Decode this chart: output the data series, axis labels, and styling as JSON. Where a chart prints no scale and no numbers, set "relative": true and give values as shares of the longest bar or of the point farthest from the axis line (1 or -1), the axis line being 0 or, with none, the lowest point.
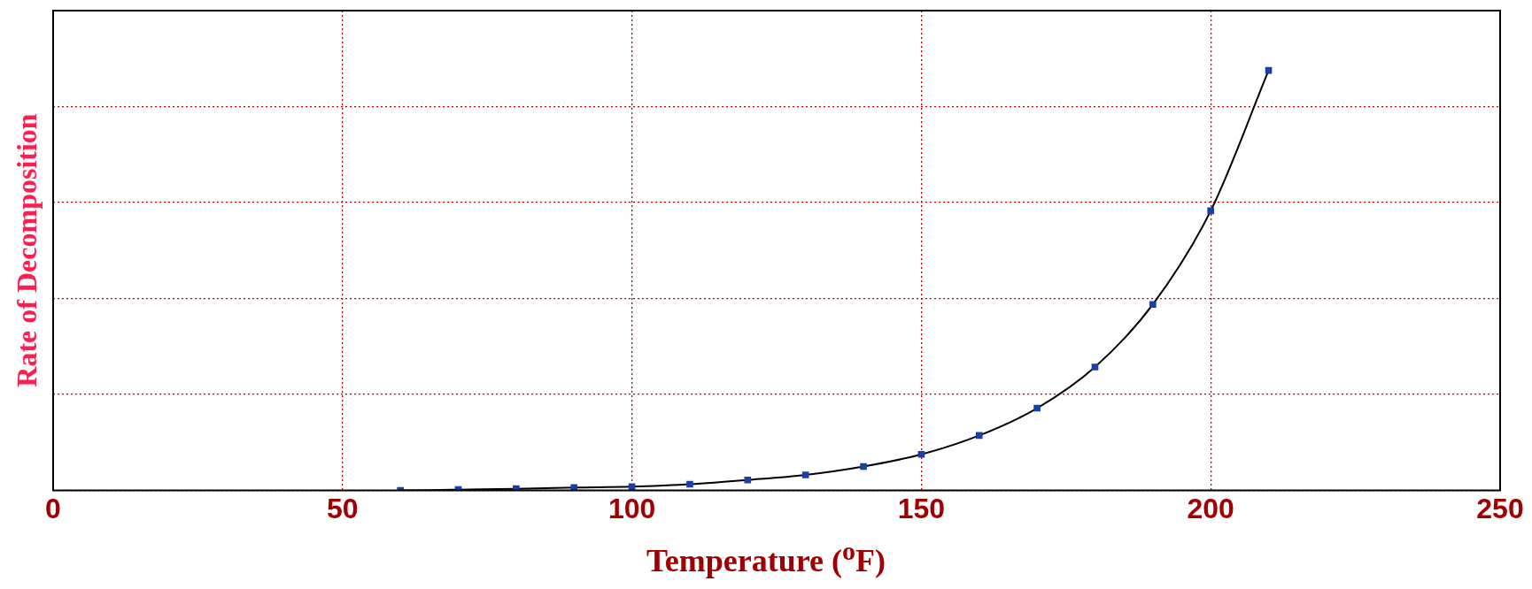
{
  "chart_data": {
    "type": "line",
    "xlabel": "Temperature ($^{o}$F)",
    "ylabel": "Rate of Decomposition",
    "relative": true,
    "x": [
      60,
      70,
      80,
      90,
      100,
      110,
      120,
      130,
      140,
      150,
      160,
      170,
      180,
      190,
      200,
      210
    ],
    "series": [
      {
        "color": "#1a3fa8",
        "values": [
          0,
          0.002,
          0.004,
          0.007,
          0.009,
          0.015,
          0.025,
          0.037,
          0.057,
          0.086,
          0.131,
          0.196,
          0.294,
          0.443,
          0.666,
          1
        ]
      }
    ],
    "xlim": [
      0,
      250
    ],
    "xticks": [
      0,
      50,
      100,
      150,
      200,
      250
    ],
    "grid": true,
    "legend": false,
    "marker": "square",
    "line_style": "solid"
  }
}
